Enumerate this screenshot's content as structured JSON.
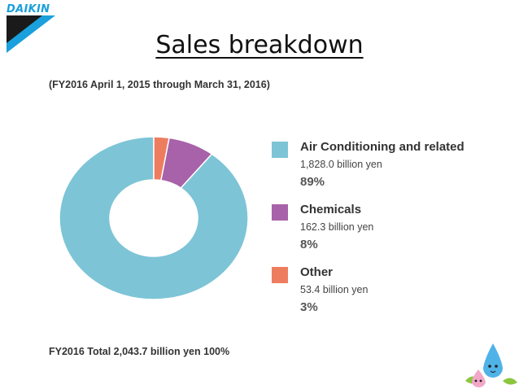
{
  "logo": {
    "text": "DAIKIN"
  },
  "slide": {
    "title": "Sales breakdown",
    "period": "(FY2016 April 1, 2015 through March 31, 2016)",
    "total": "FY2016 Total 2,043.7 billion yen 100%"
  },
  "colors": {
    "air": "#7dc4d6",
    "chem": "#a862a9",
    "other": "#ee7d60",
    "brand": "#1aa0dc"
  },
  "legend": [
    {
      "name": "Air Conditioning and related",
      "amount": "1,828.0 billion yen",
      "pct": "89%"
    },
    {
      "name": "Chemicals",
      "amount": "162.3 billion yen",
      "pct": "8%"
    },
    {
      "name": "Other",
      "amount": "53.4 billion yen",
      "pct": "3%"
    }
  ],
  "chart_data": {
    "type": "pie",
    "title": "Sales breakdown",
    "subtitle": "(FY2016 April 1, 2015 through March 31, 2016)",
    "unit": "billion yen",
    "categories": [
      "Air Conditioning and related",
      "Chemicals",
      "Other"
    ],
    "values": [
      1828.0,
      162.3,
      53.4
    ],
    "percent": [
      89,
      8,
      3
    ],
    "total": 2043.7,
    "legend_position": "right",
    "colors": [
      "#7dc4d6",
      "#a862a9",
      "#ee7d60"
    ]
  },
  "icons": {
    "logo": "daikin-logo-icon",
    "mascot": "pichonkun-mascot-icon"
  }
}
